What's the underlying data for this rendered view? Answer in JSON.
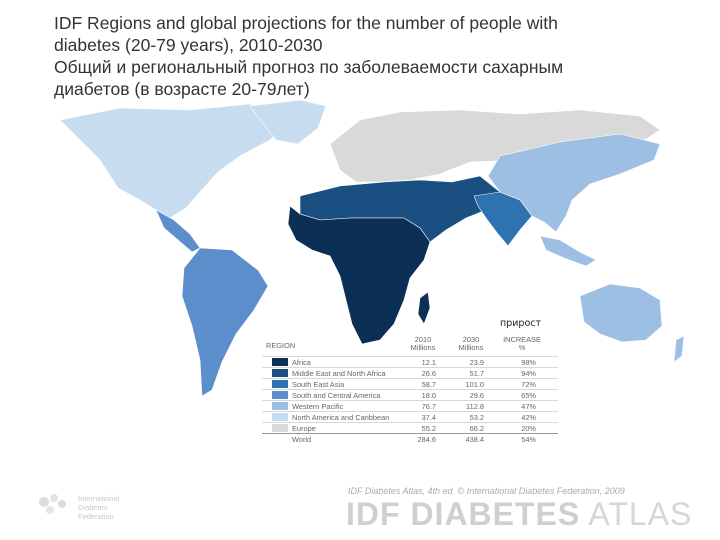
{
  "title": {
    "line1": "IDF Regions and global projections for the number of people with",
    "line2": "diabetes (20-79 years), 2010-2030",
    "line3": "Общий и региональный прогноз по заболеваемости сахарным",
    "line4": "диабетов (в возрасте 20-79лет)"
  },
  "map": {
    "annotation": "прирост",
    "colors": {
      "africa": "#0b2f55",
      "mena": "#1a4f82",
      "sea": "#2f72b0",
      "sca": "#5b8ecb",
      "wp": "#9cbfe3",
      "nac": "#c8dcef",
      "europe": "#d9d9d9"
    }
  },
  "legend": {
    "region_header": "REGION",
    "col2010": [
      "2010",
      "Millions"
    ],
    "col2030": [
      "2030",
      "Millions"
    ],
    "col_increase": [
      "INCREASE",
      "%"
    ],
    "rows": [
      {
        "name": "Africa",
        "v2010": "12.1",
        "v2030": "23.9",
        "inc": "98%",
        "color": "#0b2f55"
      },
      {
        "name": "Middle East and North Africa",
        "v2010": "26.6",
        "v2030": "51.7",
        "inc": "94%",
        "color": "#1a4f82"
      },
      {
        "name": "South East Asia",
        "v2010": "58.7",
        "v2030": "101.0",
        "inc": "72%",
        "color": "#2f72b0"
      },
      {
        "name": "South and Central America",
        "v2010": "18.0",
        "v2030": "29.6",
        "inc": "65%",
        "color": "#5b8ecb"
      },
      {
        "name": "Western Pacific",
        "v2010": "76.7",
        "v2030": "112.8",
        "inc": "47%",
        "color": "#9cbfe3"
      },
      {
        "name": "North America and Caribbean",
        "v2010": "37.4",
        "v2030": "53.2",
        "inc": "42%",
        "color": "#c8dcef"
      },
      {
        "name": "Europe",
        "v2010": "55.2",
        "v2030": "66.2",
        "inc": "20%",
        "color": "#d9d9d9"
      }
    ],
    "world": {
      "name": "World",
      "v2010": "284.6",
      "v2030": "438.4",
      "inc": "54%"
    }
  },
  "footer": {
    "credit": "IDF Diabetes Atlas, 4th ed. © International Diabetes Federation, 2009",
    "atlas_bold": "IDF DIABETES",
    "atlas_light": " ATLAS",
    "org_line1": "International",
    "org_line2": "Diabetes",
    "org_line3": "Federation"
  }
}
